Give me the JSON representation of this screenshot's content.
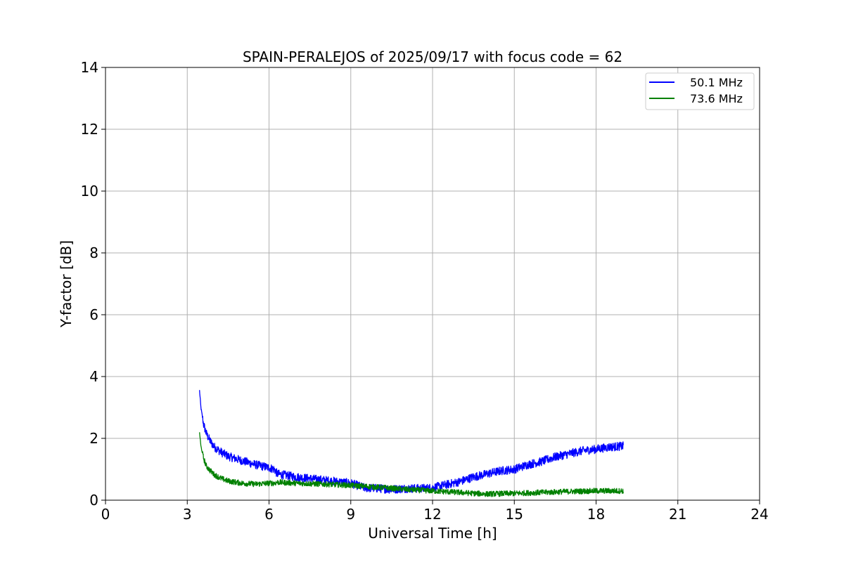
{
  "chart_data": {
    "type": "line",
    "title": "SPAIN-PERALEJOS of 2025/09/17 with focus code = 62",
    "xlabel": "Universal Time [h]",
    "ylabel": "Y-factor [dB]",
    "xlim": [
      0,
      24
    ],
    "ylim": [
      0,
      14
    ],
    "xticks": [
      0,
      3,
      6,
      9,
      12,
      15,
      18,
      21,
      24
    ],
    "yticks": [
      0,
      2,
      4,
      6,
      8,
      10,
      12,
      14
    ],
    "grid": true,
    "legend_position": "top-right",
    "series": [
      {
        "name": "50.1 MHz",
        "color": "#0000ff",
        "noise_band_db": 0.28,
        "x": [
          3.45,
          3.5,
          3.6,
          3.7,
          3.85,
          4.0,
          4.25,
          4.5,
          5.0,
          5.5,
          6.0,
          6.2,
          6.3,
          7.0,
          8.0,
          9.0,
          9.5,
          10.0,
          10.5,
          11.0,
          11.5,
          12.0,
          12.5,
          13.0,
          13.5,
          14.0,
          14.5,
          15.0,
          15.5,
          16.0,
          16.5,
          17.0,
          17.5,
          18.0,
          18.5,
          19.0
        ],
        "y": [
          3.55,
          3.0,
          2.45,
          2.15,
          1.9,
          1.72,
          1.55,
          1.42,
          1.28,
          1.15,
          1.05,
          1.0,
          0.85,
          0.75,
          0.65,
          0.55,
          0.4,
          0.38,
          0.35,
          0.38,
          0.38,
          0.4,
          0.5,
          0.6,
          0.75,
          0.85,
          0.95,
          1.0,
          1.15,
          1.25,
          1.4,
          1.5,
          1.6,
          1.65,
          1.72,
          1.75
        ]
      },
      {
        "name": "73.6 MHz",
        "color": "#008000",
        "noise_band_db": 0.18,
        "x": [
          3.45,
          3.5,
          3.6,
          3.7,
          3.85,
          4.0,
          4.25,
          4.5,
          5.0,
          5.5,
          6.0,
          6.2,
          6.3,
          7.0,
          8.0,
          9.0,
          10.0,
          11.0,
          12.0,
          13.0,
          13.5,
          14.0,
          15.0,
          16.0,
          17.0,
          18.0,
          19.0
        ],
        "y": [
          2.2,
          1.75,
          1.35,
          1.1,
          0.95,
          0.82,
          0.7,
          0.62,
          0.55,
          0.52,
          0.55,
          0.55,
          0.58,
          0.55,
          0.52,
          0.48,
          0.42,
          0.35,
          0.3,
          0.25,
          0.22,
          0.2,
          0.22,
          0.25,
          0.28,
          0.3,
          0.3
        ]
      }
    ]
  }
}
